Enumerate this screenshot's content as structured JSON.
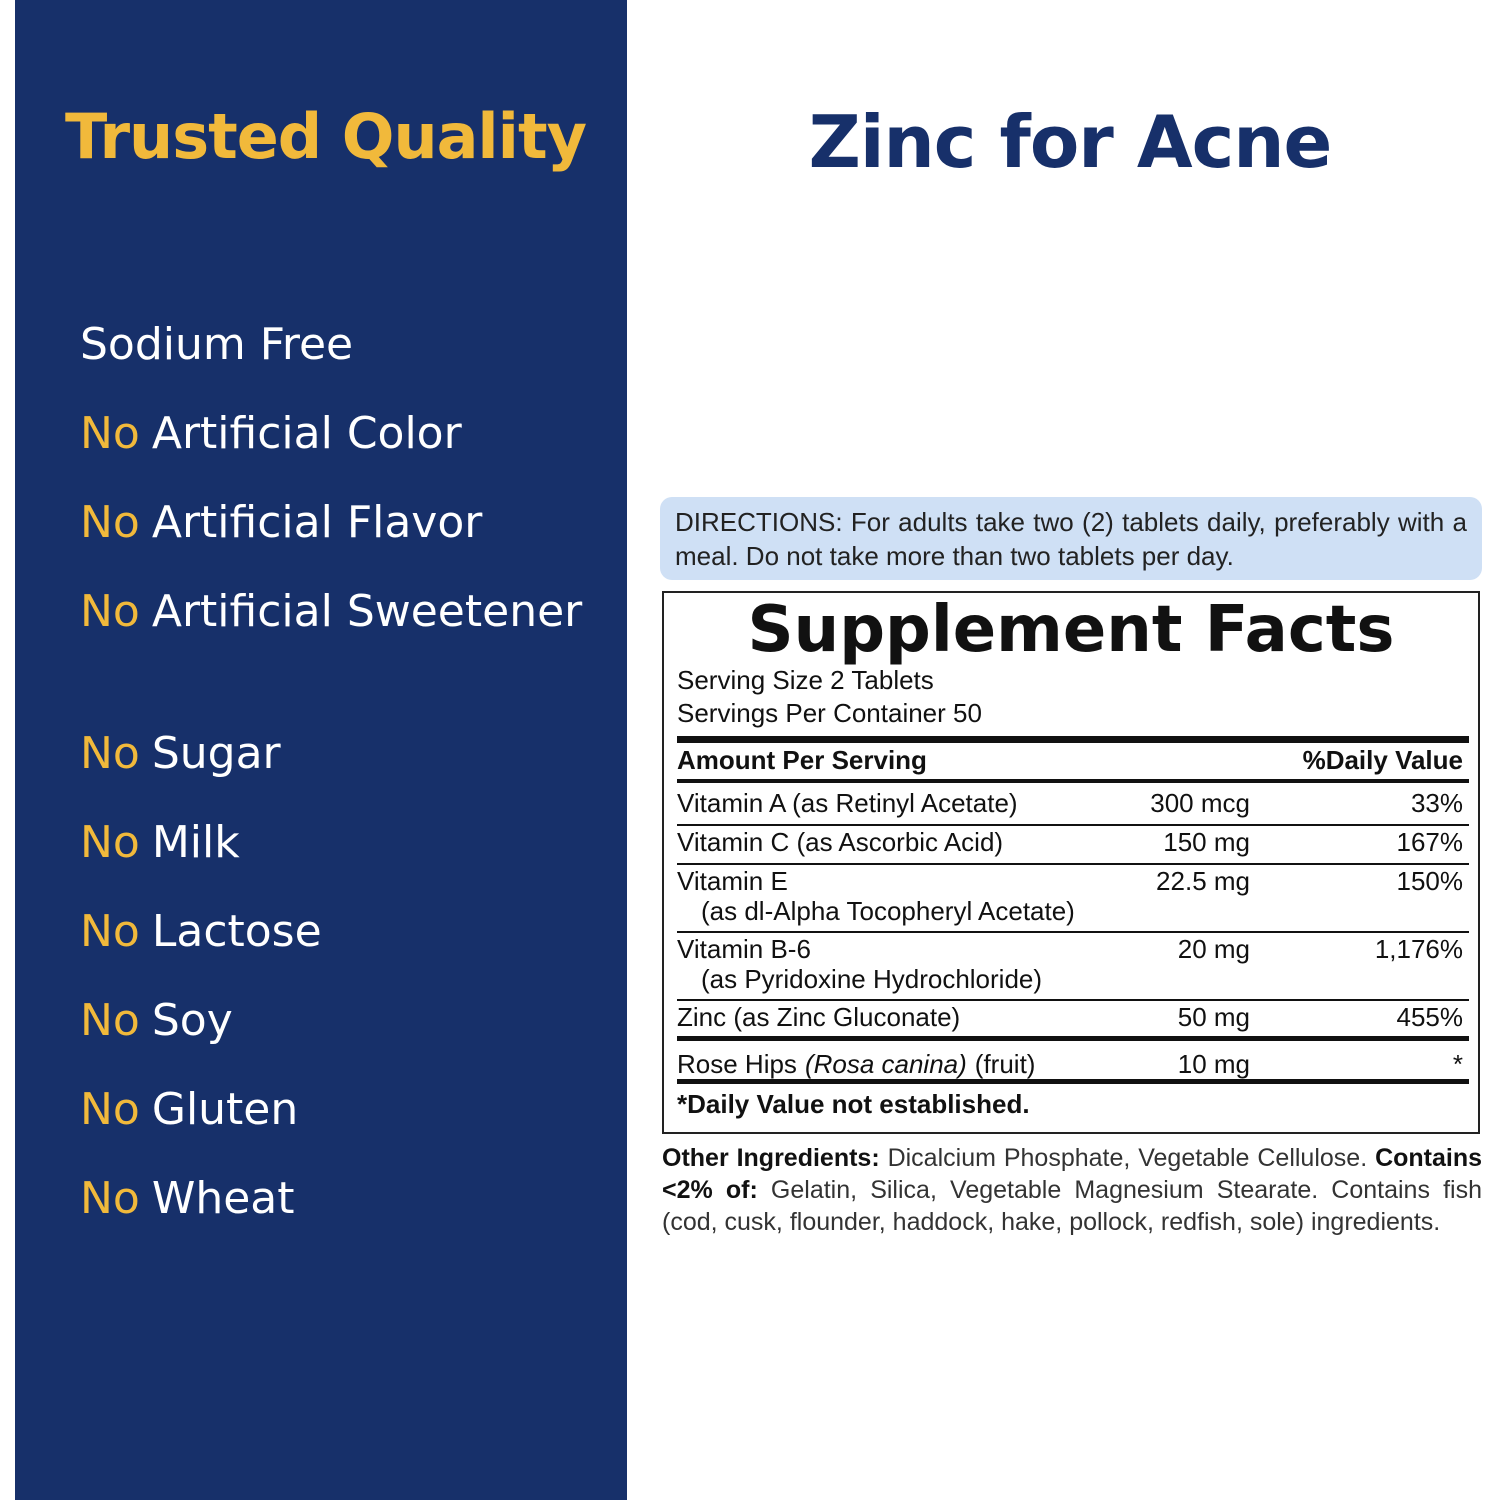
{
  "left_panel": {
    "title": "Trusted Quality",
    "items": [
      {
        "text": "Sodium Free"
      },
      {
        "prefix": "No",
        "text": "Artificial Color"
      },
      {
        "prefix": "No",
        "text": "Artificial Flavor"
      },
      {
        "prefix": "No",
        "text": "Artificial Sweetener"
      },
      {
        "prefix": "No",
        "text": "Sugar"
      },
      {
        "prefix": "No",
        "text": "Milk"
      },
      {
        "prefix": "No",
        "text": "Lactose"
      },
      {
        "prefix": "No",
        "text": "Soy"
      },
      {
        "prefix": "No",
        "text": "Gluten"
      },
      {
        "prefix": "No",
        "text": "Wheat"
      }
    ]
  },
  "header": {
    "title": "Zinc for Acne"
  },
  "directions": "DIRECTIONS: For adults take two (2) tablets daily, preferably with a meal. Do not take more than two tablets per day.",
  "facts": {
    "title": "Supplement Facts",
    "serving_size": "Serving Size 2 Tablets",
    "servings_per_container": "Servings Per Container 50",
    "amount_header": "Amount Per Serving",
    "dv_header": "%Daily Value",
    "rows": [
      {
        "name": "Vitamin A (as Retinyl Acetate)",
        "amount": "300 mcg",
        "dv": "33%"
      },
      {
        "name": "Vitamin C (as Ascorbic Acid)",
        "amount": "150 mg",
        "dv": "167%"
      },
      {
        "name": "Vitamin E",
        "sub": "(as dl-Alpha Tocopheryl Acetate)",
        "amount": "22.5 mg",
        "dv": "150%"
      },
      {
        "name": "Vitamin B-6",
        "sub": "(as Pyridoxine Hydrochloride)",
        "amount": "20 mg",
        "dv": "1,176%"
      },
      {
        "name": "Zinc (as Zinc Gluconate)",
        "amount": "50 mg",
        "dv": "455%"
      },
      {
        "name": "Rose Hips",
        "latin": "(Rosa canina)",
        "part": "(fruit)",
        "amount": "10 mg",
        "dv": "*"
      }
    ],
    "footnote": "*Daily Value not established."
  },
  "other_ingredients": {
    "label": "Other Ingredients:",
    "text": "Dicalcium Phosphate, Vegetable Cellulose.",
    "contains_label": "Contains <2% of:",
    "contains_text": "Gelatin, Silica, Vegetable Magnesium Stearate. Contains fish (cod, cusk, flounder, haddock, hake, pollock, redfish, sole) ingredients."
  }
}
